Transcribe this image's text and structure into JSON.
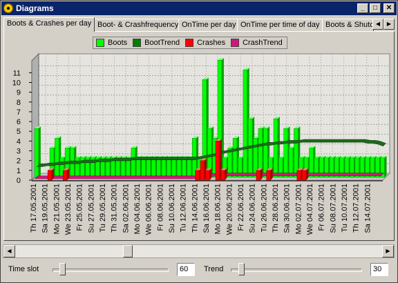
{
  "window": {
    "title": "Diagrams",
    "controls": {
      "minimize": "_",
      "maximize": "□",
      "close": "✕"
    }
  },
  "tabs": [
    {
      "label": "Boots & Crashes per day",
      "active": true
    },
    {
      "label": "Boot- & Crashfrequency",
      "active": false
    },
    {
      "label": "OnTime per day",
      "active": false
    },
    {
      "label": "OnTime per time of day",
      "active": false
    },
    {
      "label": "Boots & Shutd",
      "active": false
    }
  ],
  "legend": [
    {
      "label": "Boots",
      "color": "#00ff00"
    },
    {
      "label": "BootTrend",
      "color": "#008000"
    },
    {
      "label": "Crashes",
      "color": "#ff0000"
    },
    {
      "label": "CrashTrend",
      "color": "#d0187a"
    }
  ],
  "chart_data": {
    "type": "bar",
    "y_ticks": [
      0,
      1,
      2,
      3,
      4,
      5,
      6,
      7,
      8,
      9,
      10,
      11
    ],
    "ylim": [
      0,
      11.8
    ],
    "date_labels": [
      "Th 17.05.2001",
      "Sa 19.05.2001",
      "Mo 21.05.2001",
      "We 23.05.2001",
      "Fr 25.05.2001",
      "Su 27.05.2001",
      "Tu 29.05.2001",
      "Th 31.05.2001",
      "Sa 02.06.2001",
      "Mo 04.06.2001",
      "We 06.06.2001",
      "Fr 08.06.2001",
      "Su 10.06.2001",
      "Tu 12.06.2001",
      "Th 14.06.2001",
      "Sa 16.06.2001",
      "Mo 18.06.2001",
      "We 20.06.2001",
      "Fr 22.06.2001",
      "Su 24.06.2001",
      "Tu 26.06.2001",
      "Th 28.06.2001",
      "Sa 30.06.2001",
      "Mo 02.07.2001",
      "We 04.07.2001",
      "Fr 06.07.2001",
      "Su 08.07.2001",
      "Tu 10.07.2001",
      "Th 12.07.2001",
      "Sa 14.07.2001"
    ],
    "series": [
      {
        "name": "Boots",
        "values": [
          5,
          0,
          0,
          3,
          4,
          2,
          3,
          3,
          2,
          2,
          2,
          2,
          2,
          2,
          2,
          2,
          2,
          2,
          2,
          3,
          2,
          2,
          2,
          2,
          2,
          2,
          2,
          2,
          2,
          2,
          2,
          4,
          2,
          10,
          5,
          4,
          12,
          2,
          3,
          4,
          2,
          11,
          6,
          4,
          5,
          5,
          2,
          6,
          2,
          5,
          3,
          5,
          2,
          2,
          3,
          2,
          2,
          2,
          2,
          2,
          2,
          2,
          2,
          2,
          2,
          2,
          2,
          2,
          2
        ]
      },
      {
        "name": "BootTrend",
        "values": [
          1.1,
          1.1,
          1.2,
          1.2,
          1.3,
          1.3,
          1.4,
          1.4,
          1.4,
          1.5,
          1.5,
          1.5,
          1.6,
          1.6,
          1.6,
          1.7,
          1.7,
          1.7,
          1.7,
          1.8,
          1.8,
          1.8,
          1.8,
          1.8,
          1.8,
          1.8,
          1.8,
          1.8,
          1.8,
          1.8,
          1.8,
          1.8,
          1.9,
          2.0,
          2.1,
          2.2,
          2.4,
          2.5,
          2.6,
          2.7,
          2.8,
          2.9,
          3.0,
          3.1,
          3.2,
          3.3,
          3.3,
          3.4,
          3.4,
          3.5,
          3.5,
          3.5,
          3.6,
          3.6,
          3.6,
          3.6,
          3.6,
          3.6,
          3.6,
          3.6,
          3.6,
          3.6,
          3.6,
          3.6,
          3.6,
          3.5,
          3.5,
          3.4,
          3.2
        ]
      },
      {
        "name": "Crashes",
        "values": [
          0,
          0,
          0,
          1,
          0,
          0,
          1,
          0,
          0,
          0,
          0,
          0,
          0,
          0,
          0,
          0,
          0,
          0,
          0,
          0,
          0,
          0,
          0,
          0,
          0,
          0,
          0,
          0,
          0,
          0,
          0,
          0,
          1,
          2,
          1,
          0,
          4,
          1,
          0,
          0,
          0,
          0,
          0,
          0,
          1,
          0,
          1,
          0,
          0,
          0,
          0,
          0,
          1,
          1,
          0,
          0,
          0,
          0,
          0,
          0,
          0,
          0,
          0,
          0,
          0,
          0,
          0,
          0,
          0
        ]
      },
      {
        "name": "CrashTrend",
        "values": [
          0.15,
          0.15,
          0.15,
          0.15,
          0.15,
          0.15,
          0.15,
          0.15,
          0.15,
          0.15,
          0.15,
          0.15,
          0.15,
          0.15,
          0.15,
          0.15,
          0.15,
          0.15,
          0.15,
          0.15,
          0.15,
          0.15,
          0.15,
          0.15,
          0.15,
          0.15,
          0.15,
          0.15,
          0.15,
          0.15,
          0.15,
          0.15,
          0.2,
          0.3,
          0.35,
          0.4,
          0.45,
          0.45,
          0.45,
          0.45,
          0.45,
          0.45,
          0.45,
          0.45,
          0.45,
          0.45,
          0.45,
          0.45,
          0.45,
          0.45,
          0.45,
          0.45,
          0.45,
          0.45,
          0.45,
          0.45,
          0.45,
          0.45,
          0.45,
          0.45,
          0.45,
          0.45,
          0.45,
          0.45,
          0.45,
          0.45,
          0.45,
          0.45,
          0.45
        ]
      }
    ],
    "grid": true,
    "legend_position": "top"
  },
  "bottom": {
    "time_slot_label": "Time slot",
    "time_slot_value": "60",
    "time_slot_fraction": 0.05,
    "trend_label": "Trend",
    "trend_value": "30",
    "trend_fraction": 0.05
  },
  "scrollbar_position": 0.3
}
